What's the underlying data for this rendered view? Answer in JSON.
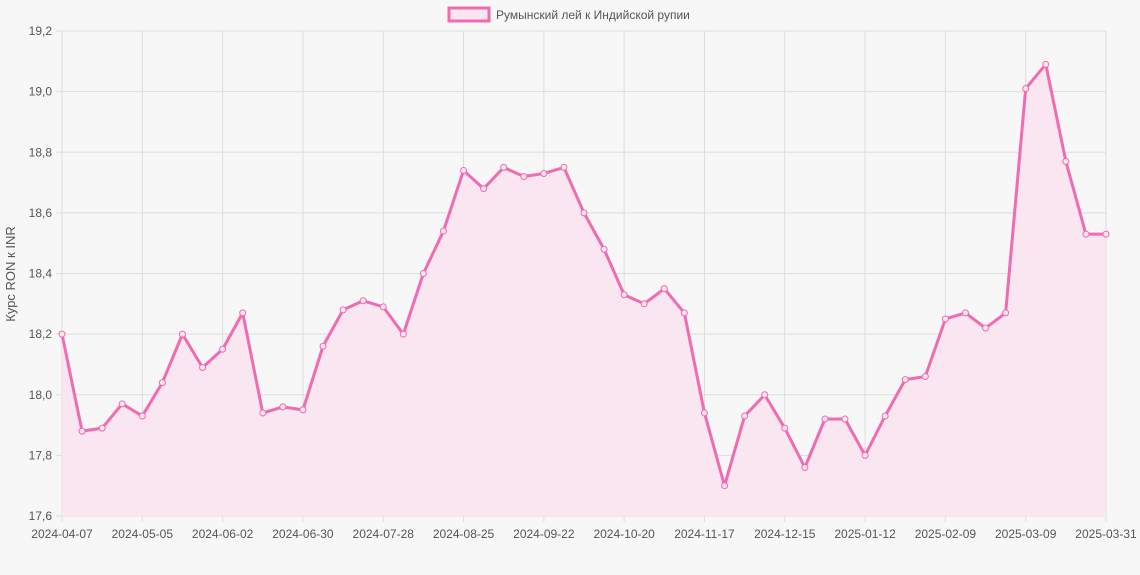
{
  "chart_data": {
    "type": "area",
    "legend": {
      "label": "Румынский лей к Индийской рупии",
      "position": "top"
    },
    "ylabel": "Курс RON к INR",
    "xlabel": "",
    "ylim": [
      17.6,
      19.2
    ],
    "yticks": [
      "17,6",
      "17,8",
      "18,0",
      "18,2",
      "18,4",
      "18,6",
      "18,8",
      "19,0",
      "19,2"
    ],
    "xticks": [
      "2024-04-07",
      "2024-05-05",
      "2024-06-02",
      "2024-06-30",
      "2024-07-28",
      "2024-08-25",
      "2024-09-22",
      "2024-10-20",
      "2024-11-17",
      "2024-12-15",
      "2025-01-12",
      "2025-02-09",
      "2025-03-09",
      "2025-03-31"
    ],
    "grid": true,
    "colors": {
      "line": "#f06bb0",
      "fill": "#f9e6f0",
      "grid": "#dddddd",
      "background": "#f7f7f7"
    },
    "series": [
      {
        "name": "Румынский лей к Индийской рупии",
        "values": [
          18.2,
          17.88,
          17.89,
          17.97,
          17.93,
          18.04,
          18.2,
          18.09,
          18.15,
          18.27,
          17.94,
          17.96,
          17.95,
          18.16,
          18.28,
          18.31,
          18.29,
          18.2,
          18.4,
          18.54,
          18.74,
          18.68,
          18.75,
          18.72,
          18.73,
          18.75,
          18.6,
          18.48,
          18.33,
          18.3,
          18.35,
          18.27,
          17.94,
          17.7,
          17.93,
          18.0,
          17.89,
          17.76,
          17.92,
          17.92,
          17.8,
          17.93,
          18.05,
          18.06,
          18.25,
          18.27,
          18.22,
          18.27,
          19.01,
          19.09,
          18.77,
          18.53,
          18.53
        ]
      }
    ]
  }
}
